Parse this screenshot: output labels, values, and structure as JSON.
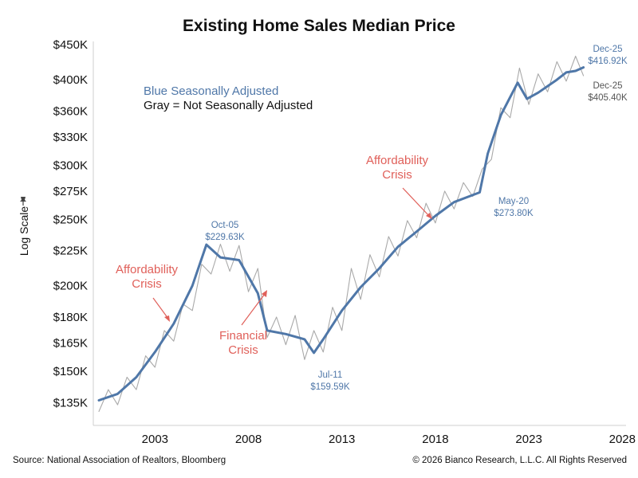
{
  "chart_data": {
    "type": "line",
    "title": "Existing Home Sales Median Price",
    "ylabel": "Log Scale",
    "ylabel_icon": "pin-icon",
    "y_scale": "log",
    "ylim": [
      125,
      455
    ],
    "xlim": [
      1999.7,
      2028.2
    ],
    "yticks": [
      135,
      150,
      165,
      180,
      200,
      225,
      250,
      275,
      300,
      330,
      360,
      400,
      450
    ],
    "ytick_labels": [
      "$135K",
      "$150K",
      "$165K",
      "$180K",
      "$200K",
      "$225K",
      "$250K",
      "$275K",
      "$300K",
      "$330K",
      "$360K",
      "$400K",
      "$450K"
    ],
    "xticks": [
      2003,
      2008,
      2013,
      2018,
      2023,
      2028
    ],
    "xtick_labels": [
      "2003",
      "2008",
      "2013",
      "2018",
      "2023",
      "2028"
    ],
    "legend": {
      "sa_label": "Blue Seasonally Adjusted",
      "nsa_label": "Gray = Not Seasonally Adjusted"
    },
    "colors": {
      "sa": "#4f77a8",
      "nsa": "#a9a9a9",
      "crisis": "#e0605a",
      "axis": "#cfcfcf"
    },
    "series": [
      {
        "name": "Seasonally Adjusted",
        "x": [
          2000.0,
          2001.0,
          2002.0,
          2003.0,
          2004.0,
          2005.0,
          2005.75,
          2006.5,
          2007.5,
          2008.5,
          2009.0,
          2010.0,
          2011.0,
          2011.5,
          2012.0,
          2013.0,
          2014.0,
          2015.0,
          2016.0,
          2017.0,
          2018.0,
          2019.0,
          2020.37,
          2020.8,
          2021.5,
          2022.4,
          2022.9,
          2023.5,
          2024.5,
          2025.0,
          2025.5,
          2025.92
        ],
        "y": [
          136,
          139,
          147,
          160,
          176,
          200,
          229.63,
          220,
          218,
          195,
          172,
          170,
          167,
          159.59,
          167,
          184,
          199,
          212,
          228,
          240,
          253,
          265,
          273.8,
          312,
          355,
          396,
          375,
          383,
          400,
          410,
          412,
          416.92
        ]
      },
      {
        "name": "Not Seasonally Adjusted",
        "x": [
          2000.0,
          2000.5,
          2001.0,
          2001.5,
          2002.0,
          2002.5,
          2003.0,
          2003.5,
          2004.0,
          2004.5,
          2005.0,
          2005.5,
          2006.0,
          2006.5,
          2007.0,
          2007.5,
          2008.0,
          2008.5,
          2009.0,
          2009.5,
          2010.0,
          2010.5,
          2011.0,
          2011.5,
          2012.0,
          2012.5,
          2013.0,
          2013.5,
          2014.0,
          2014.5,
          2015.0,
          2015.5,
          2016.0,
          2016.5,
          2017.0,
          2017.5,
          2018.0,
          2018.5,
          2019.0,
          2019.5,
          2020.0,
          2020.5,
          2021.0,
          2021.5,
          2022.0,
          2022.5,
          2023.0,
          2023.5,
          2024.0,
          2024.5,
          2025.0,
          2025.5,
          2025.92
        ],
        "y": [
          131,
          141,
          134,
          147,
          141,
          158,
          152,
          172,
          166,
          188,
          184,
          215,
          208,
          230,
          210,
          229,
          196,
          212,
          168,
          180,
          164,
          181,
          156,
          172,
          160,
          186,
          172,
          212,
          191,
          222,
          206,
          236,
          221,
          249,
          235,
          264,
          247,
          275,
          259,
          283,
          270,
          296,
          306,
          364,
          352,
          416,
          368,
          408,
          384,
          425,
          398,
          433,
          405.4
        ]
      }
    ],
    "annotations": {
      "peak_2005": {
        "date": "Oct-05",
        "value": "$229.63K"
      },
      "trough_2011": {
        "date": "Jul-11",
        "value": "$159.59K"
      },
      "may_2020": {
        "date": "May-20",
        "value": "$273.80K"
      },
      "end_sa": {
        "date": "Dec-25",
        "value": "$416.92K"
      },
      "end_nsa": {
        "date": "Dec-25",
        "value": "$405.40K"
      },
      "affordability_2004": {
        "line1": "Affordability",
        "line2": "Crisis"
      },
      "financial_2008": {
        "line1": "Financial",
        "line2": "Crisis"
      },
      "affordability_2017": {
        "line1": "Affordability",
        "line2": "Crisis"
      }
    }
  },
  "footer": {
    "source": "Source: National Association of Realtors, Bloomberg",
    "copyright": "© 2026 Bianco Research, L.L.C. All Rights Reserved"
  }
}
